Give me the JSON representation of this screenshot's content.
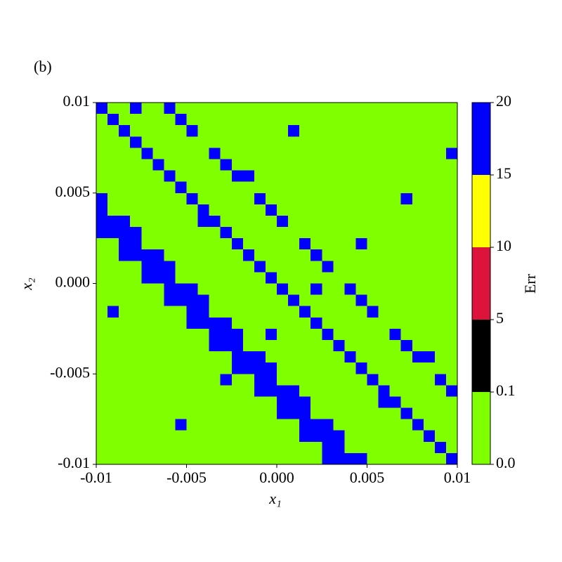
{
  "chart_data": {
    "type": "heatmap",
    "title": "(b)",
    "xlabel": "x₁",
    "ylabel": "x₂",
    "colorbar_label": "Err",
    "xlim": [
      -0.01,
      0.01
    ],
    "ylim": [
      -0.01,
      0.01
    ],
    "xticks": [
      -0.01,
      -0.005,
      {
        "value": 0,
        "label": "0.000"
      },
      0.005,
      0.01
    ],
    "yticks": [
      -0.01,
      -0.005,
      {
        "value": 0,
        "label": "0.000"
      },
      0.005,
      0.01
    ],
    "colorbar_bounds": [
      {
        "value": 0,
        "label": "0.0"
      },
      0.1,
      5,
      10,
      15,
      20
    ],
    "colorbar_colors": [
      "#7fff00",
      "#000000",
      "#dc143c",
      "#ffff00",
      "#0000ff"
    ],
    "z": [
      [
        20,
        0,
        0,
        20,
        0,
        0,
        20,
        0,
        0,
        0,
        0,
        0,
        0,
        0,
        0,
        0,
        0,
        0,
        0,
        0,
        0,
        0,
        0,
        0,
        0,
        0,
        0,
        0,
        0,
        0,
        0,
        0
      ],
      [
        0,
        20,
        0,
        0,
        0,
        0,
        0,
        20,
        0,
        0,
        0,
        0,
        0,
        0,
        0,
        0,
        0,
        0,
        0,
        0,
        0,
        0,
        0,
        0,
        0,
        0,
        0,
        0,
        0,
        0,
        0,
        0
      ],
      [
        0,
        0,
        20,
        0,
        0,
        0,
        0,
        0,
        20,
        0,
        0,
        0,
        0,
        0,
        0,
        0,
        0,
        20,
        0,
        0,
        0,
        0,
        0,
        0,
        0,
        0,
        0,
        0,
        0,
        0,
        0,
        0
      ],
      [
        0,
        0,
        0,
        20,
        0,
        0,
        0,
        0,
        0,
        0,
        0,
        0,
        0,
        0,
        0,
        0,
        0,
        0,
        0,
        0,
        0,
        0,
        0,
        0,
        0,
        0,
        0,
        0,
        0,
        0,
        0,
        0
      ],
      [
        0,
        0,
        0,
        0,
        20,
        0,
        0,
        0,
        0,
        0,
        20,
        0,
        0,
        0,
        0,
        0,
        0,
        0,
        0,
        0,
        0,
        0,
        0,
        0,
        0,
        0,
        0,
        0,
        0,
        0,
        0,
        20
      ],
      [
        0,
        0,
        0,
        0,
        0,
        20,
        0,
        0,
        0,
        0,
        0,
        20,
        0,
        0,
        0,
        0,
        0,
        0,
        0,
        0,
        0,
        0,
        0,
        0,
        0,
        0,
        0,
        0,
        0,
        0,
        0,
        0
      ],
      [
        0,
        0,
        0,
        0,
        0,
        0,
        20,
        0,
        0,
        0,
        0,
        0,
        20,
        20,
        0,
        0,
        0,
        0,
        0,
        0,
        0,
        0,
        0,
        0,
        0,
        0,
        0,
        0,
        0,
        0,
        0,
        0
      ],
      [
        0,
        0,
        0,
        0,
        0,
        0,
        0,
        20,
        0,
        0,
        0,
        0,
        0,
        0,
        0,
        0,
        0,
        0,
        0,
        0,
        0,
        0,
        0,
        0,
        0,
        0,
        0,
        0,
        0,
        0,
        0,
        0
      ],
      [
        20,
        0,
        0,
        0,
        0,
        0,
        0,
        0,
        20,
        0,
        0,
        0,
        0,
        0,
        20,
        0,
        0,
        0,
        0,
        0,
        0,
        0,
        0,
        0,
        0,
        0,
        0,
        20,
        0,
        0,
        0,
        0
      ],
      [
        20,
        0,
        0,
        0,
        0,
        0,
        0,
        0,
        0,
        20,
        0,
        0,
        0,
        0,
        0,
        20,
        0,
        0,
        0,
        0,
        0,
        0,
        0,
        0,
        0,
        0,
        0,
        0,
        0,
        0,
        0,
        0
      ],
      [
        20,
        20,
        20,
        0,
        0,
        0,
        0,
        0,
        0,
        20,
        20,
        0,
        0,
        0,
        0,
        0,
        20,
        0,
        0,
        0,
        0,
        0,
        0,
        0,
        0,
        0,
        0,
        0,
        0,
        0,
        0,
        0
      ],
      [
        20,
        20,
        20,
        20,
        0,
        0,
        0,
        0,
        0,
        0,
        0,
        20,
        0,
        0,
        0,
        0,
        0,
        0,
        0,
        0,
        0,
        0,
        0,
        0,
        0,
        0,
        0,
        0,
        0,
        0,
        0,
        0
      ],
      [
        0,
        0,
        20,
        20,
        0,
        0,
        0,
        0,
        0,
        0,
        0,
        0,
        20,
        0,
        0,
        0,
        0,
        0,
        20,
        0,
        0,
        0,
        0,
        20,
        0,
        0,
        0,
        0,
        0,
        0,
        0,
        0
      ],
      [
        0,
        0,
        20,
        20,
        20,
        20,
        0,
        0,
        0,
        0,
        0,
        0,
        0,
        20,
        0,
        0,
        0,
        0,
        0,
        20,
        0,
        0,
        0,
        0,
        0,
        0,
        0,
        0,
        0,
        0,
        0,
        0
      ],
      [
        0,
        0,
        0,
        0,
        20,
        20,
        20,
        0,
        0,
        0,
        0,
        0,
        0,
        0,
        20,
        0,
        0,
        0,
        0,
        0,
        20,
        0,
        0,
        0,
        0,
        0,
        0,
        0,
        0,
        0,
        0,
        0
      ],
      [
        0,
        0,
        0,
        0,
        20,
        20,
        20,
        0,
        0,
        0,
        0,
        0,
        0,
        0,
        0,
        20,
        0,
        0,
        0,
        0,
        0,
        0,
        0,
        0,
        0,
        0,
        0,
        0,
        0,
        0,
        0,
        0
      ],
      [
        0,
        0,
        0,
        0,
        0,
        0,
        20,
        20,
        20,
        0,
        0,
        0,
        0,
        0,
        0,
        0,
        20,
        0,
        0,
        20,
        0,
        0,
        20,
        0,
        0,
        0,
        0,
        0,
        0,
        0,
        0,
        0
      ],
      [
        0,
        0,
        0,
        0,
        0,
        0,
        20,
        20,
        20,
        20,
        0,
        0,
        0,
        0,
        0,
        0,
        0,
        20,
        0,
        0,
        0,
        0,
        0,
        20,
        0,
        0,
        0,
        0,
        0,
        0,
        0,
        0
      ],
      [
        0,
        20,
        0,
        0,
        0,
        0,
        0,
        0,
        20,
        20,
        0,
        0,
        0,
        0,
        0,
        0,
        0,
        0,
        20,
        0,
        0,
        0,
        0,
        0,
        20,
        0,
        0,
        0,
        0,
        0,
        0,
        0
      ],
      [
        0,
        0,
        0,
        0,
        0,
        0,
        0,
        0,
        20,
        20,
        20,
        20,
        0,
        0,
        0,
        0,
        0,
        0,
        0,
        20,
        0,
        0,
        0,
        0,
        0,
        0,
        0,
        0,
        0,
        0,
        0,
        0
      ],
      [
        0,
        0,
        0,
        0,
        0,
        0,
        0,
        0,
        0,
        0,
        20,
        20,
        20,
        0,
        0,
        20,
        0,
        0,
        0,
        0,
        20,
        0,
        0,
        0,
        0,
        0,
        20,
        0,
        0,
        0,
        0,
        0
      ],
      [
        0,
        0,
        0,
        0,
        0,
        0,
        0,
        0,
        0,
        0,
        20,
        20,
        20,
        0,
        0,
        0,
        0,
        0,
        0,
        0,
        0,
        20,
        0,
        0,
        0,
        0,
        0,
        20,
        0,
        0,
        0,
        0
      ],
      [
        0,
        0,
        0,
        0,
        0,
        0,
        0,
        0,
        0,
        0,
        0,
        0,
        20,
        20,
        20,
        0,
        0,
        0,
        0,
        0,
        0,
        0,
        20,
        0,
        0,
        0,
        0,
        0,
        20,
        20,
        0,
        0
      ],
      [
        0,
        0,
        0,
        0,
        0,
        0,
        0,
        0,
        0,
        0,
        0,
        0,
        20,
        20,
        20,
        20,
        0,
        0,
        0,
        0,
        0,
        0,
        0,
        20,
        0,
        0,
        0,
        0,
        0,
        0,
        0,
        0
      ],
      [
        0,
        0,
        0,
        0,
        0,
        0,
        0,
        0,
        0,
        0,
        0,
        20,
        0,
        0,
        20,
        20,
        0,
        0,
        0,
        0,
        0,
        0,
        0,
        0,
        20,
        0,
        0,
        0,
        0,
        0,
        20,
        0
      ],
      [
        0,
        0,
        0,
        0,
        0,
        0,
        0,
        0,
        0,
        0,
        0,
        0,
        0,
        0,
        20,
        20,
        20,
        20,
        0,
        0,
        0,
        0,
        0,
        0,
        0,
        20,
        0,
        0,
        0,
        0,
        0,
        20
      ],
      [
        0,
        0,
        0,
        0,
        0,
        0,
        0,
        0,
        0,
        0,
        0,
        0,
        0,
        0,
        0,
        0,
        20,
        20,
        20,
        0,
        0,
        0,
        0,
        0,
        0,
        20,
        20,
        0,
        0,
        0,
        0,
        0
      ],
      [
        0,
        0,
        0,
        0,
        0,
        0,
        0,
        0,
        0,
        0,
        0,
        0,
        0,
        0,
        0,
        0,
        20,
        20,
        20,
        0,
        0,
        0,
        0,
        0,
        0,
        0,
        0,
        20,
        0,
        0,
        0,
        0
      ],
      [
        0,
        0,
        0,
        0,
        0,
        0,
        0,
        20,
        0,
        0,
        0,
        0,
        0,
        0,
        0,
        0,
        0,
        0,
        20,
        20,
        20,
        0,
        0,
        0,
        0,
        0,
        0,
        0,
        20,
        0,
        0,
        0
      ],
      [
        0,
        0,
        0,
        0,
        0,
        0,
        0,
        0,
        0,
        0,
        0,
        0,
        0,
        0,
        0,
        0,
        0,
        0,
        20,
        20,
        20,
        20,
        0,
        0,
        0,
        0,
        0,
        0,
        0,
        20,
        0,
        0
      ],
      [
        0,
        0,
        0,
        0,
        0,
        0,
        0,
        0,
        0,
        0,
        0,
        0,
        0,
        0,
        0,
        0,
        0,
        0,
        0,
        0,
        20,
        20,
        0,
        0,
        0,
        0,
        0,
        0,
        0,
        0,
        20,
        0
      ],
      [
        0,
        0,
        0,
        0,
        0,
        0,
        0,
        0,
        0,
        0,
        0,
        0,
        0,
        0,
        0,
        0,
        0,
        0,
        0,
        0,
        20,
        20,
        20,
        20,
        0,
        0,
        0,
        0,
        0,
        0,
        0,
        20
      ]
    ]
  }
}
